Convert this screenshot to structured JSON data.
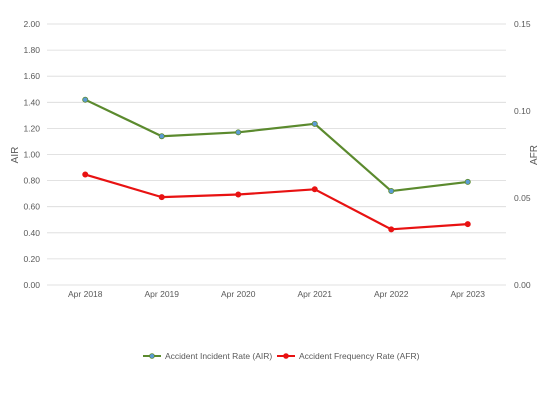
{
  "chart_data": {
    "type": "line",
    "categories": [
      "Apr 2018",
      "Apr 2019",
      "Apr 2020",
      "Apr 2021",
      "Apr 2022",
      "Apr 2023"
    ],
    "series": [
      {
        "name": "Accident Incident Rate (AIR)",
        "axis": "left",
        "color": "#5b8a2e",
        "marker_color": "#5b9bd5",
        "values": [
          1.42,
          1.14,
          1.17,
          1.235,
          0.72,
          0.79
        ]
      },
      {
        "name": "Accident Frequency Rate (AFR)",
        "axis": "right",
        "color": "#e81212",
        "marker_color": "#e81212",
        "values": [
          0.0635,
          0.0505,
          0.052,
          0.055,
          0.032,
          0.035
        ]
      }
    ],
    "ylabel": "AIR",
    "ylabel_right": "AFR",
    "ylim": [
      0,
      2.0
    ],
    "ylim_right": [
      0,
      0.15
    ],
    "y_ticks": [
      "0.00",
      "0.20",
      "0.40",
      "0.60",
      "0.80",
      "1.00",
      "1.20",
      "1.40",
      "1.60",
      "1.80",
      "2.00"
    ],
    "y_right_ticks": [
      "0.00",
      "0.05",
      "0.10",
      "0.15"
    ],
    "grid": true,
    "legend_position": "bottom",
    "grid_color": "#d9d9d9"
  }
}
